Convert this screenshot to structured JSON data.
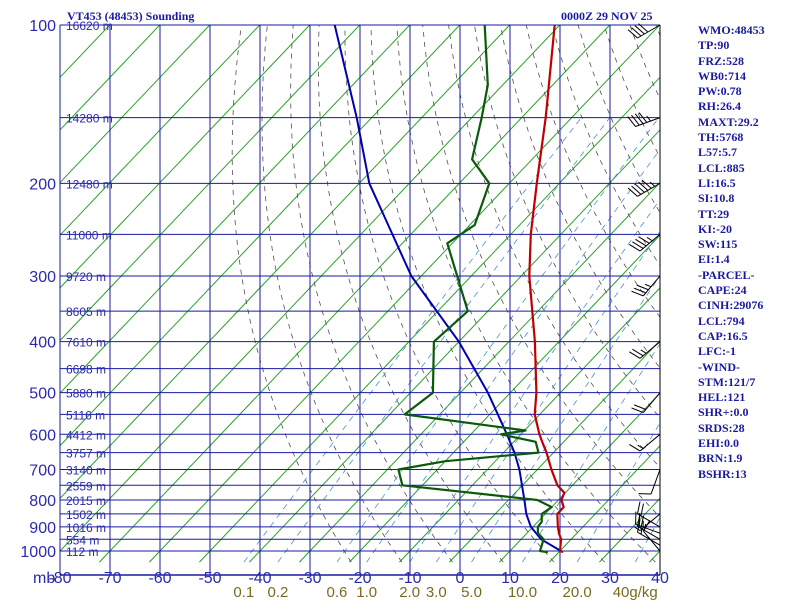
{
  "header": {
    "station": "VT453 (48453) Sounding",
    "time": "0000Z 29 NOV 25"
  },
  "chart_data": {
    "type": "skew-t",
    "x_axis_prefix": "mb",
    "pressure_ticks": [
      100,
      200,
      300,
      400,
      500,
      600,
      700,
      800,
      900,
      1000
    ],
    "isobars": [
      100,
      150,
      200,
      250,
      300,
      350,
      400,
      450,
      500,
      550,
      600,
      650,
      700,
      750,
      800,
      850,
      900,
      950,
      1000
    ],
    "p_range": [
      100,
      1050
    ],
    "temp_ticks": [
      -80,
      -70,
      -60,
      -50,
      -40,
      -30,
      -20,
      -10,
      0,
      10,
      20,
      30,
      40
    ],
    "isotherm_range": [
      -180,
      40
    ],
    "height_labels": [
      {
        "p": 100,
        "text": "16620 m"
      },
      {
        "p": 150,
        "text": "14280 m"
      },
      {
        "p": 200,
        "text": "12480 m"
      },
      {
        "p": 250,
        "text": "11000 m"
      },
      {
        "p": 300,
        "text": "9720 m"
      },
      {
        "p": 350,
        "text": "8605 m"
      },
      {
        "p": 400,
        "text": "7610 m"
      },
      {
        "p": 450,
        "text": "6698 m"
      },
      {
        "p": 500,
        "text": "5880 m"
      },
      {
        "p": 550,
        "text": "5116 m"
      },
      {
        "p": 600,
        "text": "4412 m"
      },
      {
        "p": 650,
        "text": "3757 m"
      },
      {
        "p": 700,
        "text": "3140 m"
      },
      {
        "p": 750,
        "text": "2559 m"
      },
      {
        "p": 800,
        "text": "2015 m"
      },
      {
        "p": 850,
        "text": "1502 m"
      },
      {
        "p": 900,
        "text": "1016 m"
      },
      {
        "p": 950,
        "text": "554 m"
      },
      {
        "p": 1000,
        "text": "112 m"
      }
    ],
    "mixing_ratio_ticks": [
      "0.1",
      "0.2",
      "0.6",
      "1.0",
      "2.0",
      "3.0",
      "5.0",
      "10.0",
      "20.0",
      "40g/kg"
    ],
    "mixing_ratios": [
      0.1,
      0.2,
      0.6,
      1.0,
      2.0,
      3.0,
      5.0,
      10.0,
      20.0,
      40.0
    ],
    "temperature": [
      {
        "p": 1005,
        "t": 20.8
      },
      {
        "p": 1000,
        "t": 20.0
      },
      {
        "p": 950,
        "t": 18.0
      },
      {
        "p": 925,
        "t": 16.4
      },
      {
        "p": 900,
        "t": 15.0
      },
      {
        "p": 850,
        "t": 12.4
      },
      {
        "p": 825,
        "t": 12.4
      },
      {
        "p": 800,
        "t": 10.6
      },
      {
        "p": 775,
        "t": 9.8
      },
      {
        "p": 750,
        "t": 7.0
      },
      {
        "p": 700,
        "t": 2.8
      },
      {
        "p": 650,
        "t": -1.4
      },
      {
        "p": 620,
        "t": -4.3
      },
      {
        "p": 600,
        "t": -6.3
      },
      {
        "p": 550,
        "t": -11.0
      },
      {
        "p": 500,
        "t": -14.8
      },
      {
        "p": 400,
        "t": -24.8
      },
      {
        "p": 300,
        "t": -38.4
      },
      {
        "p": 250,
        "t": -46.0
      },
      {
        "p": 200,
        "t": -54.5
      },
      {
        "p": 150,
        "t": -65.2
      },
      {
        "p": 100,
        "t": -81.0
      }
    ],
    "dewpoint": [
      {
        "p": 1005,
        "t": 17.8
      },
      {
        "p": 1000,
        "t": 16.0
      },
      {
        "p": 950,
        "t": 14.5
      },
      {
        "p": 925,
        "t": 12.2
      },
      {
        "p": 900,
        "t": 11.0
      },
      {
        "p": 880,
        "t": 10.8
      },
      {
        "p": 850,
        "t": 9.3
      },
      {
        "p": 825,
        "t": 10.0
      },
      {
        "p": 800,
        "t": 5.8
      },
      {
        "p": 750,
        "t": -24.0
      },
      {
        "p": 700,
        "t": -27.8
      },
      {
        "p": 675,
        "t": -20.0
      },
      {
        "p": 650,
        "t": -3.0
      },
      {
        "p": 620,
        "t": -5.6
      },
      {
        "p": 600,
        "t": -14.0
      },
      {
        "p": 590,
        "t": -9.8
      },
      {
        "p": 550,
        "t": -37.0
      },
      {
        "p": 500,
        "t": -35.5
      },
      {
        "p": 400,
        "t": -45.0
      },
      {
        "p": 350,
        "t": -44.0
      },
      {
        "p": 260,
        "t": -61.0
      },
      {
        "p": 240,
        "t": -59.0
      },
      {
        "p": 200,
        "t": -64.0
      },
      {
        "p": 180,
        "t": -72.0
      },
      {
        "p": 150,
        "t": -78.0
      },
      {
        "p": 130,
        "t": -83.0
      },
      {
        "p": 100,
        "t": -95.0
      }
    ],
    "parcel": [
      {
        "p": 1005,
        "t": 20.8
      },
      {
        "p": 950,
        "t": 14.0
      },
      {
        "p": 900,
        "t": 9.6
      },
      {
        "p": 850,
        "t": 6.2
      },
      {
        "p": 800,
        "t": 3.2
      },
      {
        "p": 700,
        "t": -3.6
      },
      {
        "p": 650,
        "t": -7.8
      },
      {
        "p": 600,
        "t": -12.8
      },
      {
        "p": 500,
        "t": -24.5
      },
      {
        "p": 400,
        "t": -40.0
      },
      {
        "p": 300,
        "t": -62.0
      },
      {
        "p": 200,
        "t": -88.0
      },
      {
        "p": 150,
        "t": -103.0
      },
      {
        "p": 100,
        "t": -125.0
      }
    ],
    "wind_barbs": [
      {
        "p": 1000,
        "dir": 320,
        "spd": 10
      },
      {
        "p": 975,
        "dir": 300,
        "spd": 15
      },
      {
        "p": 950,
        "dir": 300,
        "spd": 25
      },
      {
        "p": 925,
        "dir": 290,
        "spd": 25
      },
      {
        "p": 900,
        "dir": 300,
        "spd": 20
      },
      {
        "p": 850,
        "dir": 230,
        "spd": 5
      },
      {
        "p": 700,
        "dir": 200,
        "spd": 10
      },
      {
        "p": 600,
        "dir": 230,
        "spd": 15
      },
      {
        "p": 500,
        "dir": 220,
        "spd": 20
      },
      {
        "p": 400,
        "dir": 230,
        "spd": 25
      },
      {
        "p": 300,
        "dir": 220,
        "spd": 35
      },
      {
        "p": 250,
        "dir": 230,
        "spd": 45
      },
      {
        "p": 200,
        "dir": 240,
        "spd": 55
      },
      {
        "p": 150,
        "dir": 250,
        "spd": 45
      },
      {
        "p": 100,
        "dir": 240,
        "spd": 40
      }
    ]
  },
  "indices": [
    "WMO:48453",
    "TP:90",
    "FRZ:528",
    "WB0:714",
    "PW:0.78",
    "RH:26.4",
    "MAXT:29.2",
    "TH:5768",
    "L57:5.7",
    "LCL:885",
    "LI:16.5",
    "SI:10.8",
    "TT:29",
    "KI:-20",
    "SW:115",
    "EI:1.4",
    "-PARCEL-",
    "CAPE:24",
    "CINH:29076",
    "LCL:794",
    "CAP:16.5",
    "LFC:-1",
    "-WIND-",
    "STM:121/7",
    "HEL:121",
    "SHR+:0.0",
    "SRDS:28",
    "EHI:0.0",
    "BRN:1.9",
    "BSHR:13"
  ],
  "colors": {
    "grid": "#1a1aa0",
    "isotherm": "#2ca02c",
    "mixing": "#4a90d0",
    "adiabat": "#505050",
    "temperature": "#c00000",
    "dewpoint": "#0a5a0a",
    "parcel": "#0000b0",
    "barb": "#000000"
  }
}
